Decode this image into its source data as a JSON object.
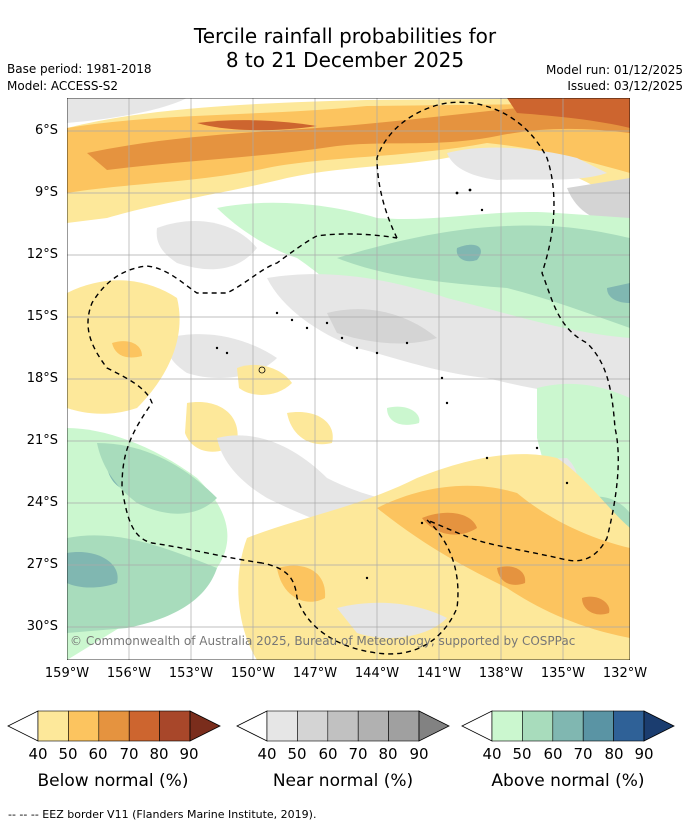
{
  "title_line1": "Tercile rainfall probabilities for",
  "title_line2": "8 to 21 December 2025",
  "base_period": "Base period: 1981-2018",
  "model": "Model: ACCESS-S2",
  "model_run": "Model run: 01/12/2025",
  "issued": "Issued: 03/12/2025",
  "lat_labels": [
    "6°S",
    "9°S",
    "12°S",
    "15°S",
    "18°S",
    "21°S",
    "24°S",
    "27°S",
    "30°S"
  ],
  "lon_labels": [
    "159°W",
    "156°W",
    "153°W",
    "150°W",
    "147°W",
    "144°W",
    "141°W",
    "138°W",
    "135°W",
    "132°W"
  ],
  "copyright": "© Commonwealth of Australia 2025, Bureau of Meteorology, supported by COSPPac",
  "colorbars": [
    {
      "title": "Below normal (%)",
      "ticks": [
        "40",
        "50",
        "60",
        "70",
        "80",
        "90"
      ],
      "colors": [
        "#fde89a",
        "#fcc45f",
        "#e5933f",
        "#cd652f",
        "#a8472a",
        "#7a2d1c"
      ]
    },
    {
      "title": "Near normal (%)",
      "ticks": [
        "40",
        "50",
        "60",
        "70",
        "80",
        "90"
      ],
      "colors": [
        "#e6e6e6",
        "#d4d4d4",
        "#c1c1c1",
        "#b1b1b1",
        "#a0a0a0",
        "#828282"
      ]
    },
    {
      "title": "Above normal (%)",
      "ticks": [
        "40",
        "50",
        "60",
        "70",
        "80",
        "90"
      ],
      "colors": [
        "#cbf7cf",
        "#a8dcbc",
        "#80b7b1",
        "#5a94a4",
        "#2f6197",
        "#1b3d6f"
      ]
    }
  ],
  "footer": "--  --  -- EEZ border V11 (Flanders Marine Institute, 2019)."
}
